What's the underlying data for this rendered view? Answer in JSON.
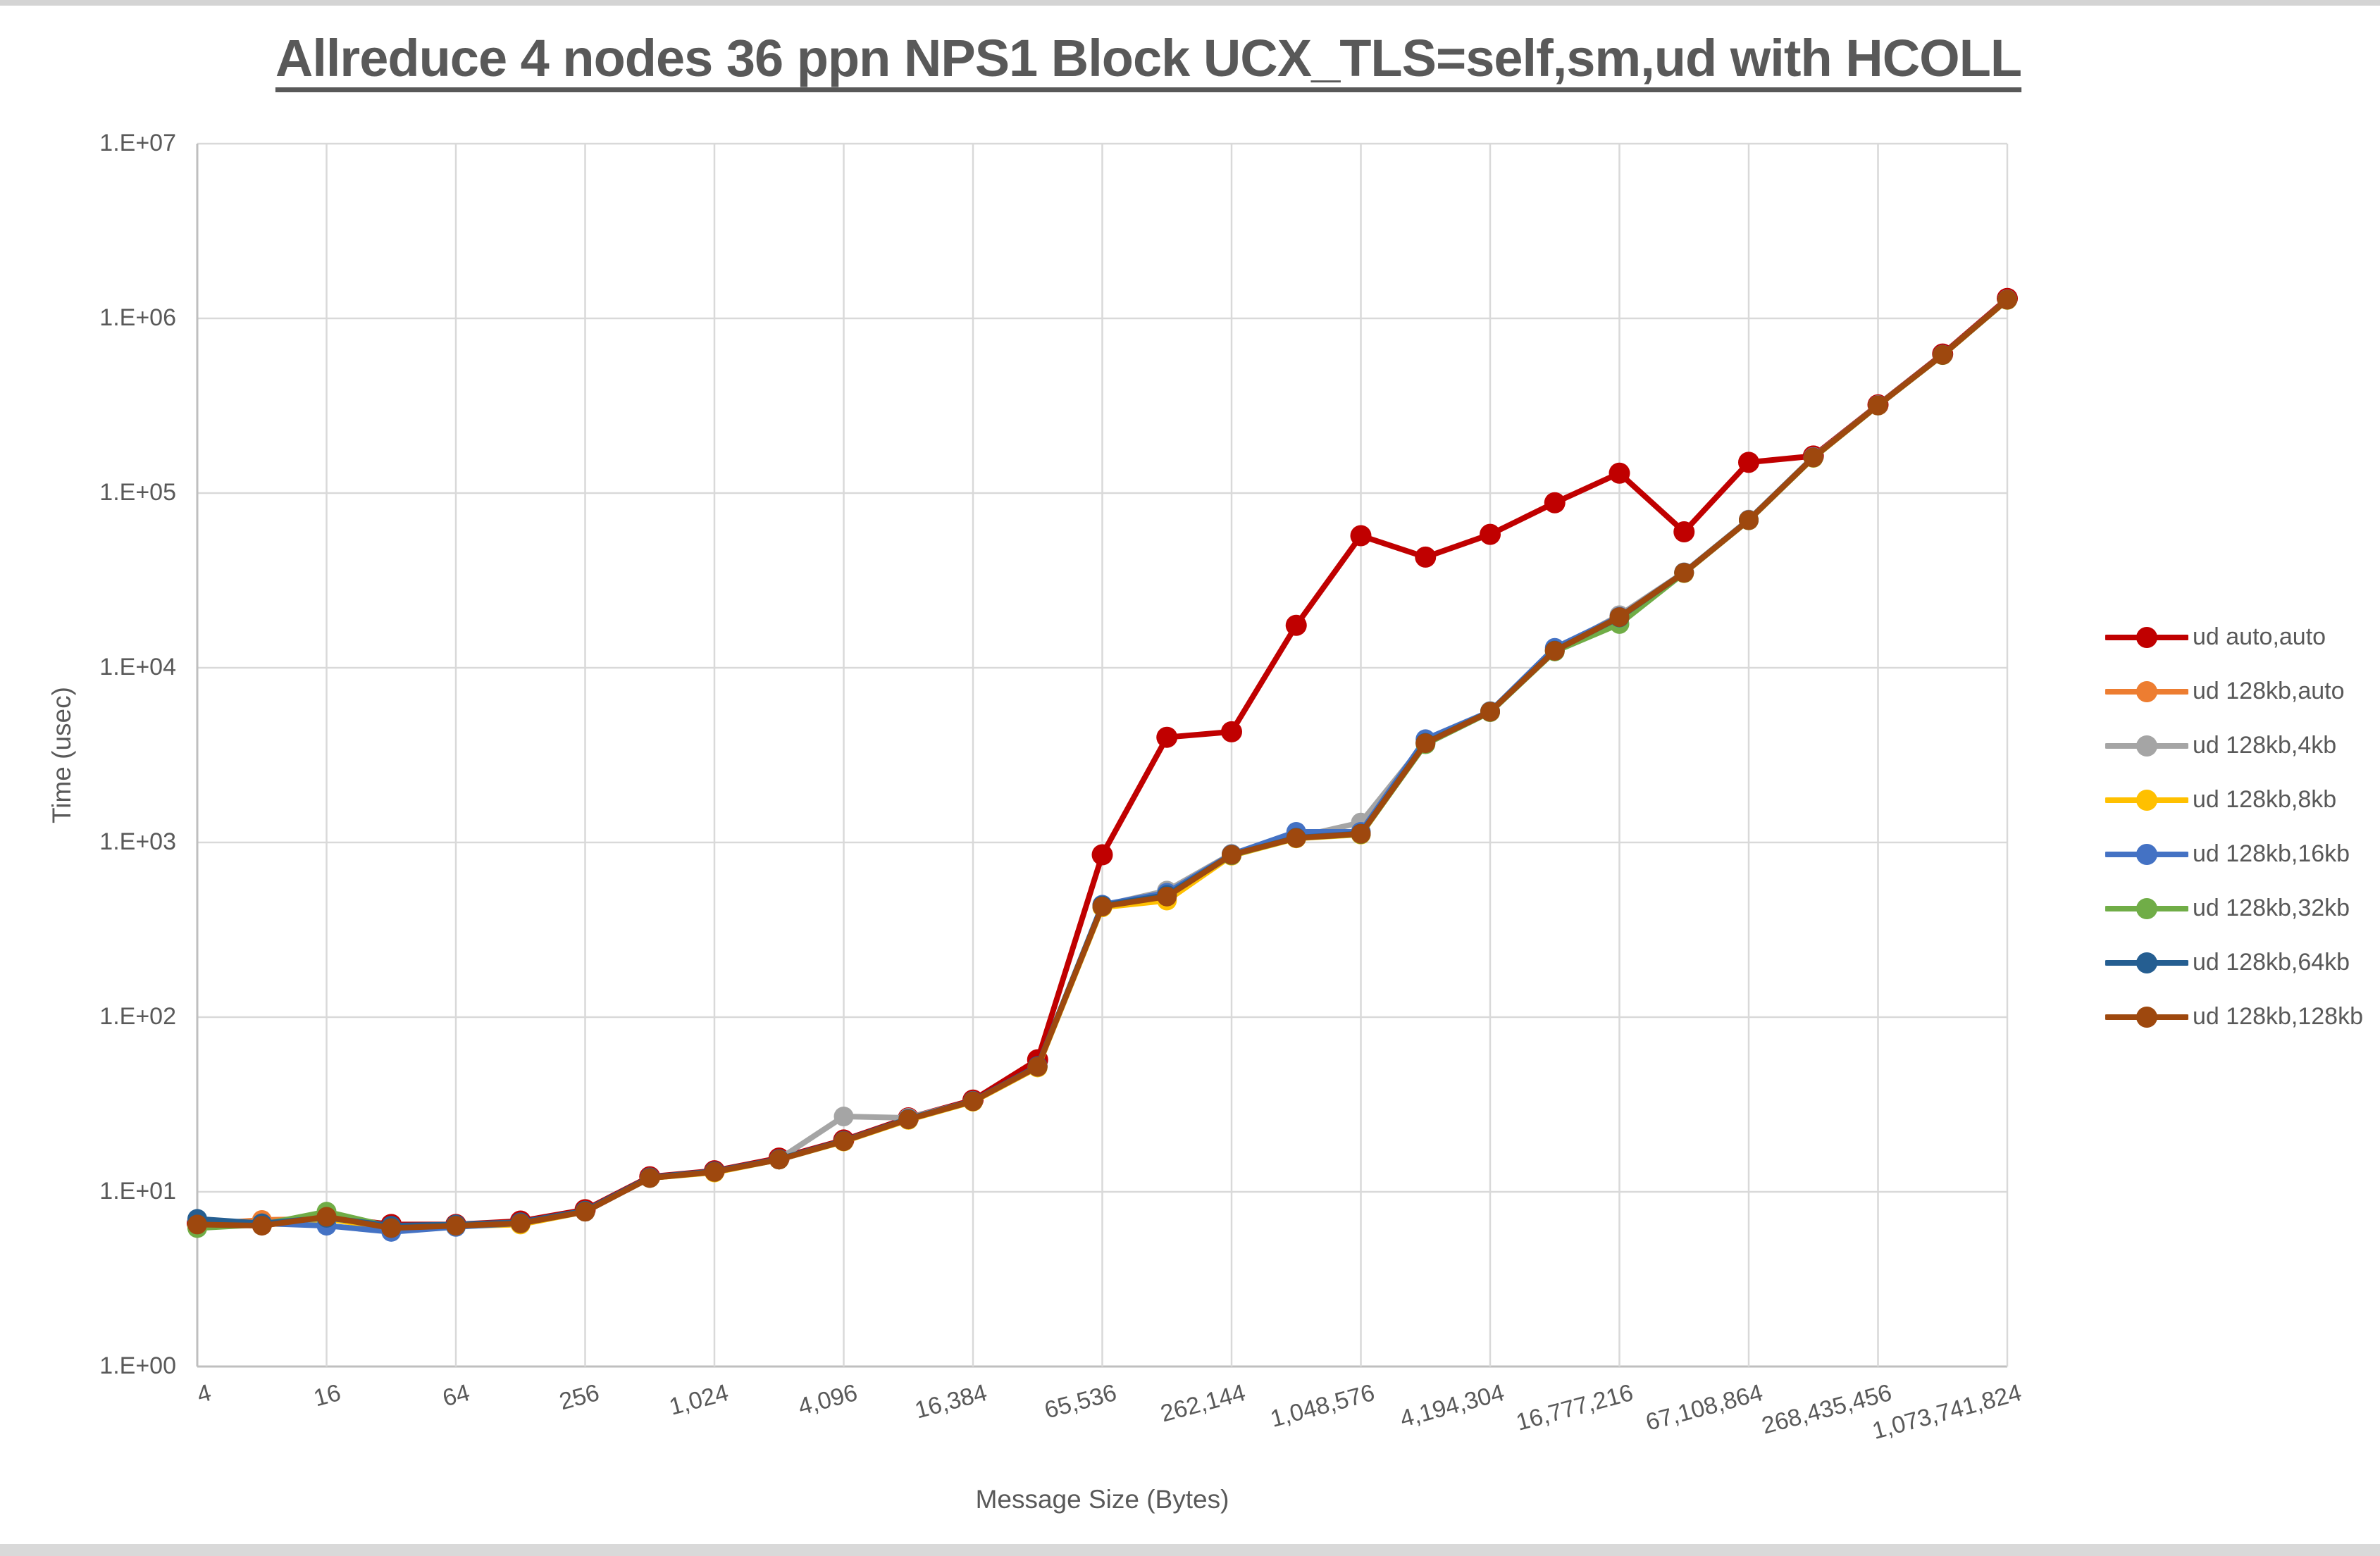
{
  "window": {
    "top_strip": true,
    "bottom_strip": true
  },
  "chart_data": {
    "type": "line",
    "title": "Allreduce 4 nodes 36 ppn NPS1 Block UCX_TLS=self,sm,ud with HCOLL",
    "xlabel": "Message Size (Bytes)",
    "ylabel": "Time (usec)",
    "x_scale": "log2-categories",
    "y_scale": "log10",
    "ylim": [
      1,
      10000000
    ],
    "grid": "both",
    "legend_position": "right",
    "colors": {
      "text": "#595959",
      "gridline": "#d9d9d9",
      "axis_line": "#bfbfbf"
    },
    "y_ticks": [
      {
        "label": "1.E+00",
        "exp": 0
      },
      {
        "label": "1.E+01",
        "exp": 1
      },
      {
        "label": "1.E+02",
        "exp": 2
      },
      {
        "label": "1.E+03",
        "exp": 3
      },
      {
        "label": "1.E+04",
        "exp": 4
      },
      {
        "label": "1.E+05",
        "exp": 5
      },
      {
        "label": "1.E+06",
        "exp": 6
      },
      {
        "label": "1.E+07",
        "exp": 7
      }
    ],
    "categories": [
      "4",
      "8",
      "16",
      "32",
      "64",
      "128",
      "256",
      "512",
      "1,024",
      "2,048",
      "4,096",
      "8,192",
      "16,384",
      "32,768",
      "65,536",
      "131,072",
      "262,144",
      "524,288",
      "1,048,576",
      "2,097,152",
      "4,194,304",
      "8,388,608",
      "16,777,216",
      "33,554,432",
      "67,108,864",
      "134,217,728",
      "268,435,456",
      "536,870,912",
      "1,073,741,824"
    ],
    "x_tick_every": 2,
    "series": [
      {
        "name": "ud auto,auto",
        "color": "#c00000",
        "values": [
          6.6,
          6.6,
          7.2,
          6.5,
          6.5,
          6.8,
          7.9,
          12.2,
          13.2,
          15.6,
          19.8,
          26.5,
          33.5,
          57,
          850,
          4000,
          4300,
          17500,
          57000,
          43000,
          58000,
          88000,
          130000,
          60000,
          150000,
          163000,
          320000,
          625000,
          1300000
        ]
      },
      {
        "name": "ud 128kb,auto",
        "color": "#ed7d31",
        "values": [
          6.5,
          6.9,
          7.0,
          6.3,
          6.4,
          6.6,
          7.7,
          12.0,
          13.0,
          15.3,
          19.5,
          26,
          33,
          52,
          430,
          490,
          850,
          1060,
          1120,
          3700,
          5600,
          12500,
          19500,
          35000,
          70000,
          160000,
          318000,
          618000,
          1280000
        ]
      },
      {
        "name": "ud 128kb,4kb",
        "color": "#a5a5a5",
        "values": [
          6.4,
          6.5,
          7.1,
          6.3,
          6.4,
          6.6,
          7.7,
          12.1,
          13.0,
          15.4,
          27,
          26.5,
          33,
          52,
          435,
          530,
          860,
          1070,
          1300,
          3750,
          5650,
          12600,
          20000,
          35200,
          70500,
          161000,
          319000,
          619000,
          1285000
        ]
      },
      {
        "name": "ud 128kb,8kb",
        "color": "#ffc000",
        "values": [
          6.3,
          6.5,
          7.0,
          6.2,
          6.35,
          6.5,
          7.7,
          12.0,
          12.9,
          15.3,
          19.4,
          25.8,
          32.8,
          51.5,
          425,
          465,
          840,
          1055,
          1110,
          3680,
          5580,
          12450,
          19300,
          34800,
          69800,
          159000,
          317000,
          616000,
          1275000
        ]
      },
      {
        "name": "ud 128kb,16kb",
        "color": "#4472c4",
        "values": [
          6.9,
          6.6,
          6.4,
          5.9,
          6.3,
          6.6,
          7.7,
          12.0,
          13.1,
          15.3,
          19.6,
          26,
          33.2,
          52,
          440,
          515,
          855,
          1150,
          1150,
          3900,
          5620,
          13000,
          19600,
          35100,
          70200,
          160500,
          318500,
          619500,
          1282000
        ]
      },
      {
        "name": "ud 128kb,32kb",
        "color": "#70ad47",
        "values": [
          6.2,
          6.5,
          7.7,
          6.3,
          6.4,
          6.6,
          7.8,
          12.0,
          13.0,
          15.3,
          19.5,
          26,
          33,
          52,
          430,
          495,
          845,
          1060,
          1115,
          3650,
          5570,
          12400,
          17800,
          34900,
          69900,
          159500,
          317500,
          617000,
          1278000
        ]
      },
      {
        "name": "ud 128kb,64kb",
        "color": "#255e91",
        "values": [
          7.0,
          6.6,
          7.1,
          6.4,
          6.5,
          6.7,
          7.8,
          12.1,
          13.1,
          15.4,
          19.6,
          26.2,
          33.1,
          52.5,
          435,
          500,
          850,
          1065,
          1125,
          3720,
          5610,
          12550,
          19400,
          35000,
          70000,
          160000,
          318000,
          618000,
          1281000
        ]
      },
      {
        "name": "ud 128kb,128kb",
        "color": "#9e480e",
        "values": [
          6.5,
          6.4,
          7.2,
          6.2,
          6.4,
          6.6,
          7.7,
          12.0,
          13.0,
          15.3,
          19.5,
          26,
          33,
          52,
          430,
          490,
          850,
          1060,
          1120,
          3700,
          5600,
          12500,
          19500,
          35000,
          70000,
          160000,
          318000,
          618000,
          1280000
        ]
      }
    ]
  }
}
